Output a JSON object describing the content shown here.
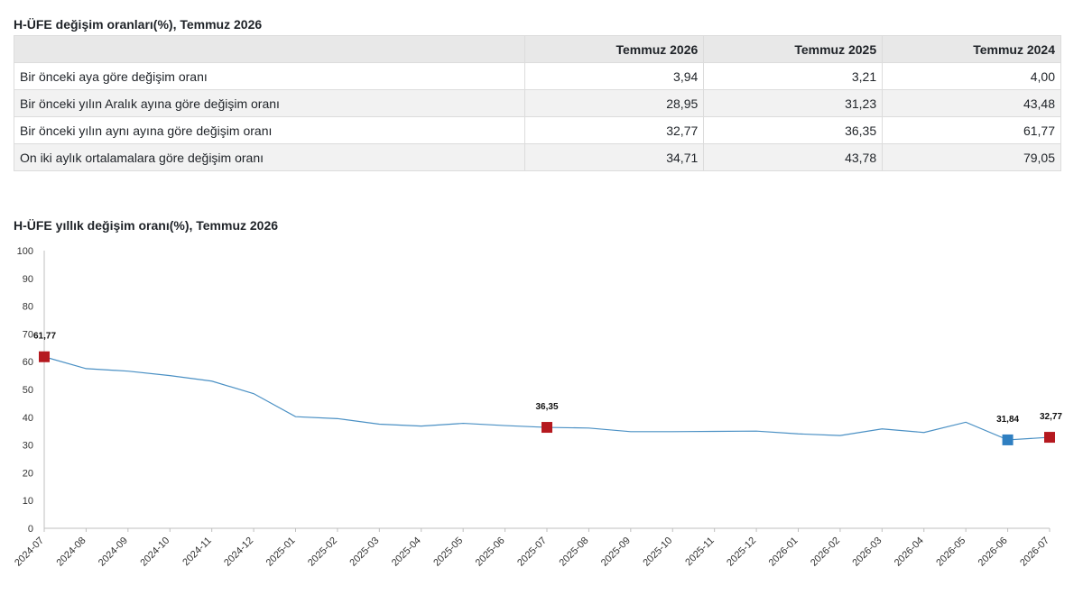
{
  "table": {
    "title": "H-ÜFE değişim oranları(%), Temmuz 2026",
    "headers": [
      "",
      "Temmuz 2026",
      "Temmuz 2025",
      "Temmuz 2024"
    ],
    "rows": [
      {
        "label": "Bir önceki aya göre değişim oranı",
        "values": [
          "3,94",
          "3,21",
          "4,00"
        ]
      },
      {
        "label": "Bir önceki yılın Aralık ayına göre değişim oranı",
        "values": [
          "28,95",
          "31,23",
          "43,48"
        ]
      },
      {
        "label": "Bir önceki yılın aynı ayına göre değişim oranı",
        "values": [
          "32,77",
          "36,35",
          "61,77"
        ]
      },
      {
        "label": "On iki aylık ortalamalara göre değişim oranı",
        "values": [
          "34,71",
          "43,78",
          "79,05"
        ]
      }
    ]
  },
  "chart_data": {
    "type": "line",
    "title": "H-ÜFE yıllık değişim oranı(%), Temmuz 2026",
    "xlabel": "",
    "ylabel": "",
    "ylim": [
      0,
      100
    ],
    "yticks": [
      0,
      10,
      20,
      30,
      40,
      50,
      60,
      70,
      80,
      90,
      100
    ],
    "grid": false,
    "x": [
      "2024-07",
      "2024-08",
      "2024-09",
      "2024-10",
      "2024-11",
      "2024-12",
      "2025-01",
      "2025-02",
      "2025-03",
      "2025-04",
      "2025-05",
      "2025-06",
      "2025-07",
      "2025-08",
      "2025-09",
      "2025-10",
      "2025-11",
      "2025-12",
      "2026-01",
      "2026-02",
      "2026-03",
      "2026-04",
      "2026-05",
      "2026-06",
      "2026-07"
    ],
    "series": [
      {
        "values": [
          61.77,
          57.5,
          56.6,
          55.0,
          53.0,
          48.5,
          40.2,
          39.5,
          37.5,
          36.8,
          37.8,
          37.0,
          36.35,
          36.1,
          34.8,
          34.8,
          34.9,
          35.0,
          34.0,
          33.4,
          35.8,
          34.5,
          38.2,
          31.84,
          32.77
        ],
        "color": "#4a90c4"
      }
    ],
    "annotations": [
      {
        "x": "2024-07",
        "value": 61.77,
        "label": "61,77",
        "marker_color": "#b5191f"
      },
      {
        "x": "2025-07",
        "value": 36.35,
        "label": "36,35",
        "marker_color": "#b5191f"
      },
      {
        "x": "2026-06",
        "value": 31.84,
        "label": "31,84",
        "marker_color": "#2f7fc1"
      },
      {
        "x": "2026-07",
        "value": 32.77,
        "label": "32,77",
        "marker_color": "#b5191f"
      }
    ]
  }
}
